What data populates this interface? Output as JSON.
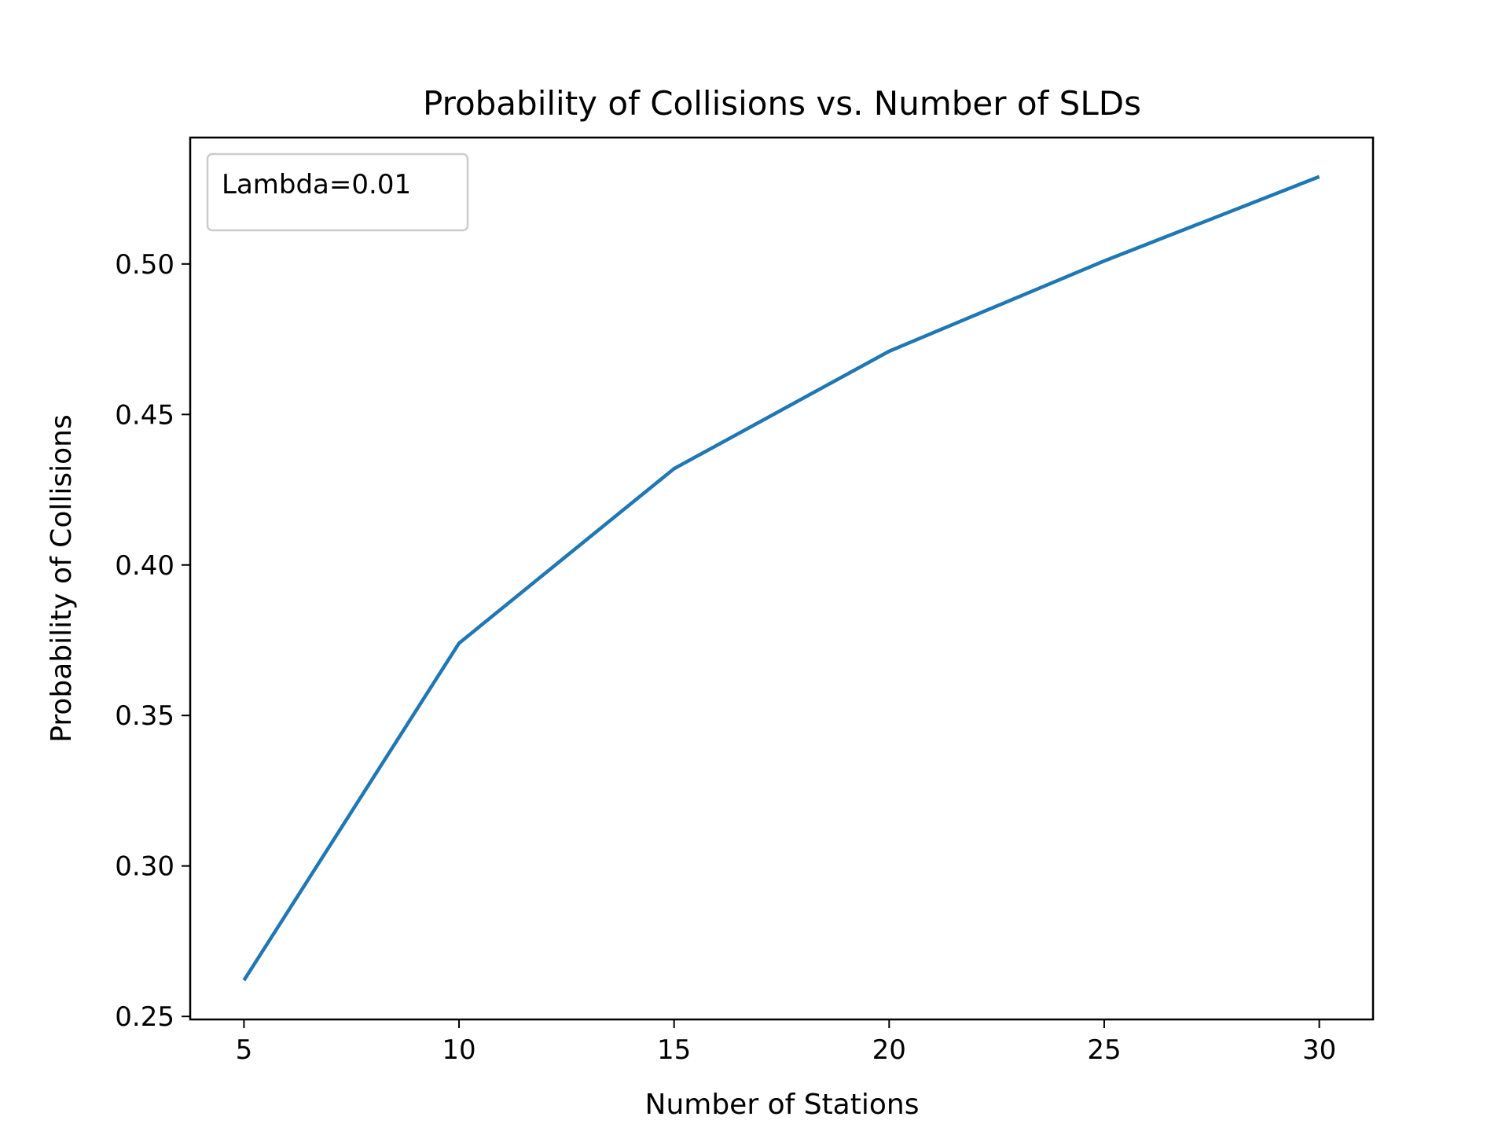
{
  "chart_data": {
    "type": "line",
    "title": "Probability of Collisions vs. Number of SLDs",
    "xlabel": "Number of Stations",
    "ylabel": "Probability of Collisions",
    "x": [
      5,
      10,
      15,
      20,
      25,
      30
    ],
    "series": [
      {
        "name": "Lambda=0.01",
        "values": [
          0.262,
          0.374,
          0.432,
          0.471,
          0.501,
          0.529
        ],
        "color": "#1f77b4"
      }
    ],
    "xlim": [
      3.75,
      31.25
    ],
    "ylim": [
      0.249,
      0.542
    ],
    "xticks": [
      5,
      10,
      15,
      20,
      25,
      30
    ],
    "xtick_labels": [
      "5",
      "10",
      "15",
      "20",
      "25",
      "30"
    ],
    "yticks": [
      0.25,
      0.3,
      0.35,
      0.4,
      0.45,
      0.5
    ],
    "ytick_labels": [
      "0.25",
      "0.30",
      "0.35",
      "0.40",
      "0.45",
      "0.50"
    ],
    "grid": false,
    "legend_position": "top-left"
  }
}
